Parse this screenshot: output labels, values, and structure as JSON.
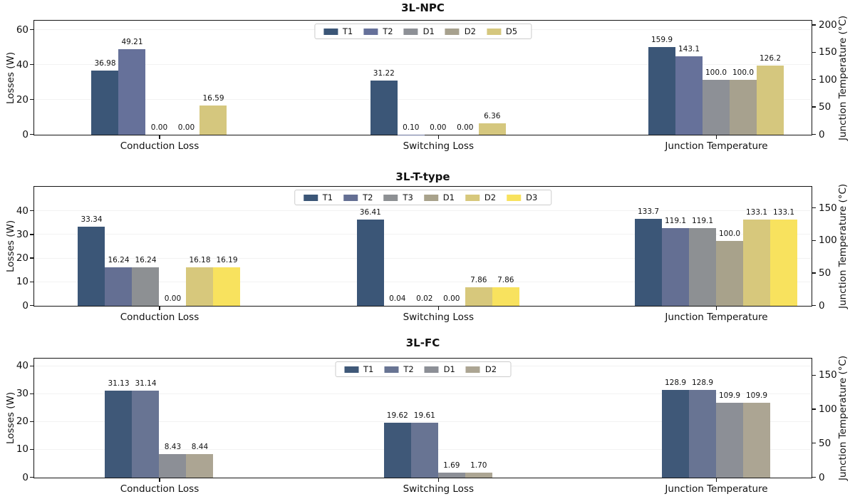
{
  "figure": {
    "background": "#ffffff",
    "text_color": "#111111",
    "grid_color": "#f2f2f2",
    "spine_color": "#151515"
  },
  "chart_data": [
    {
      "type": "bar",
      "title": "3L-NPC",
      "categories": [
        "Conduction Loss",
        "Switching Loss",
        "Junction Temperature"
      ],
      "category_axis": [
        "left",
        "left",
        "right"
      ],
      "ylabel_left": "Losses (W)",
      "ylabel_right": "Junction Temperature (°C)",
      "left_ticks": [
        0,
        20,
        40,
        60
      ],
      "left_max": 65,
      "right_ticks": [
        0,
        50,
        100,
        150,
        200
      ],
      "right_max": 207,
      "grid": true,
      "legend_position": "upper center",
      "series": [
        {
          "name": "T1",
          "color": "#3b5677",
          "values": [
            36.98,
            31.22,
            159.9
          ],
          "labels": [
            "36.98",
            "31.22",
            "159.9"
          ]
        },
        {
          "name": "T2",
          "color": "#66719a",
          "values": [
            49.21,
            0.1,
            143.1
          ],
          "labels": [
            "49.21",
            "0.10",
            "143.1"
          ]
        },
        {
          "name": "D1",
          "color": "#8d9096",
          "values": [
            0.0,
            0.0,
            100.0
          ],
          "labels": [
            "0.00",
            "0.00",
            "100.0"
          ]
        },
        {
          "name": "D2",
          "color": "#a7a18e",
          "values": [
            0.0,
            0.0,
            100.0
          ],
          "labels": [
            "0.00",
            "0.00",
            "100.0"
          ]
        },
        {
          "name": "D5",
          "color": "#d5c77e",
          "values": [
            16.59,
            6.36,
            126.2
          ],
          "labels": [
            "16.59",
            "6.36",
            "126.2"
          ]
        }
      ]
    },
    {
      "type": "bar",
      "title": "3L-T-type",
      "categories": [
        "Conduction Loss",
        "Switching Loss",
        "Junction Temperature"
      ],
      "category_axis": [
        "left",
        "left",
        "right"
      ],
      "ylabel_left": "Losses (W)",
      "ylabel_right": "Junction Temperature (°C)",
      "left_ticks": [
        0,
        10,
        20,
        30,
        40
      ],
      "left_max": 50,
      "right_ticks": [
        0,
        50,
        100,
        150
      ],
      "right_max": 182,
      "grid": true,
      "legend_position": "upper center",
      "series": [
        {
          "name": "T1",
          "color": "#3b5677",
          "values": [
            33.34,
            36.41,
            133.7
          ],
          "labels": [
            "33.34",
            "36.41",
            "133.7"
          ]
        },
        {
          "name": "T2",
          "color": "#646f93",
          "values": [
            16.24,
            0.04,
            119.1
          ],
          "labels": [
            "16.24",
            "0.04",
            "119.1"
          ]
        },
        {
          "name": "T3",
          "color": "#8d9093",
          "values": [
            16.24,
            0.02,
            119.1
          ],
          "labels": [
            "16.24",
            "0.02",
            "119.1"
          ]
        },
        {
          "name": "D1",
          "color": "#a8a28b",
          "values": [
            0.0,
            0.0,
            100.0
          ],
          "labels": [
            "0.00",
            "0.00",
            "100.0"
          ]
        },
        {
          "name": "D2",
          "color": "#d7c87c",
          "values": [
            16.18,
            7.86,
            133.1
          ],
          "labels": [
            "16.18",
            "7.86",
            "133.1"
          ]
        },
        {
          "name": "D3",
          "color": "#f8e25e",
          "values": [
            16.19,
            7.86,
            133.1
          ],
          "labels": [
            "16.19",
            "7.86",
            "133.1"
          ]
        }
      ]
    },
    {
      "type": "bar",
      "title": "3L-FC",
      "categories": [
        "Conduction Loss",
        "Switching Loss",
        "Junction Temperature"
      ],
      "category_axis": [
        "left",
        "left",
        "right"
      ],
      "ylabel_left": "Losses (W)",
      "ylabel_right": "Junction Temperature (°C)",
      "left_ticks": [
        0,
        10,
        20,
        30,
        40
      ],
      "left_max": 42.5,
      "right_ticks": [
        0,
        50,
        100,
        150
      ],
      "right_max": 174,
      "grid": true,
      "legend_position": "upper center",
      "series": [
        {
          "name": "T1",
          "color": "#3f5878",
          "values": [
            31.13,
            19.62,
            128.9
          ],
          "labels": [
            "31.13",
            "19.62",
            "128.9"
          ]
        },
        {
          "name": "T2",
          "color": "#687493",
          "values": [
            31.14,
            19.61,
            128.9
          ],
          "labels": [
            "31.14",
            "19.61",
            "128.9"
          ]
        },
        {
          "name": "D1",
          "color": "#8c8f96",
          "values": [
            8.43,
            1.69,
            109.9
          ],
          "labels": [
            "8.43",
            "1.69",
            "109.9"
          ]
        },
        {
          "name": "D2",
          "color": "#aca593",
          "values": [
            8.44,
            1.7,
            109.9
          ],
          "labels": [
            "8.44",
            "1.70",
            "109.9"
          ]
        }
      ]
    }
  ]
}
